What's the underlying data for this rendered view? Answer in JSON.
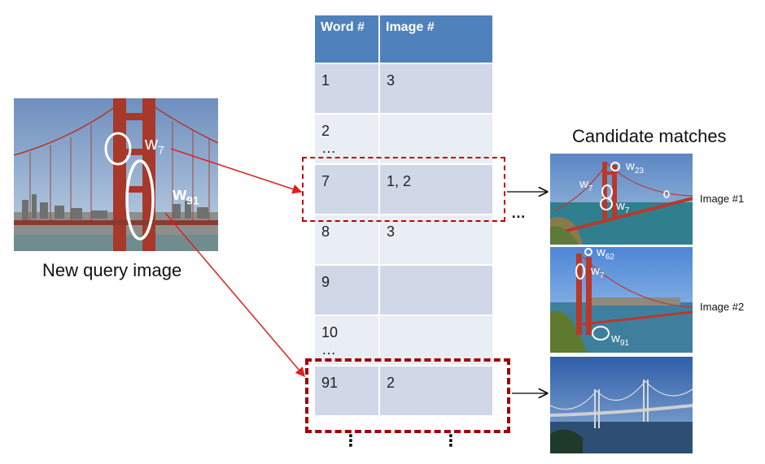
{
  "query": {
    "caption": "New query image",
    "word_a": {
      "base": "w",
      "sub": "7"
    },
    "word_b": {
      "base": "w",
      "sub": "91"
    }
  },
  "table": {
    "headers": [
      "Word #",
      "Image #"
    ],
    "rows": [
      {
        "word": "1",
        "images": "3"
      },
      {
        "word": "2\n…",
        "images": ""
      },
      {
        "word": "7",
        "images": "1, 2"
      },
      {
        "word": "8",
        "images": "3"
      },
      {
        "word": "9",
        "images": ""
      },
      {
        "word": "10\n…",
        "images": ""
      },
      {
        "word": "91",
        "images": "2"
      }
    ],
    "more": "⋮"
  },
  "ellipsis": "…",
  "candidates": {
    "title": "Candidate matches",
    "image1": {
      "label": "Image #1",
      "w23": {
        "base": "w",
        "sub": "23"
      },
      "w7a": {
        "base": "w",
        "sub": "7"
      },
      "w7b": {
        "base": "w",
        "sub": "7"
      }
    },
    "image2": {
      "label": "Image #2",
      "w62": {
        "base": "w",
        "sub": "62"
      },
      "w7": {
        "base": "w",
        "sub": "7"
      },
      "w91": {
        "base": "w",
        "sub": "91"
      }
    }
  },
  "colors": {
    "arrow_red": "#e02020",
    "highlight": "#c00000",
    "header_blue": "#4f81bd"
  }
}
